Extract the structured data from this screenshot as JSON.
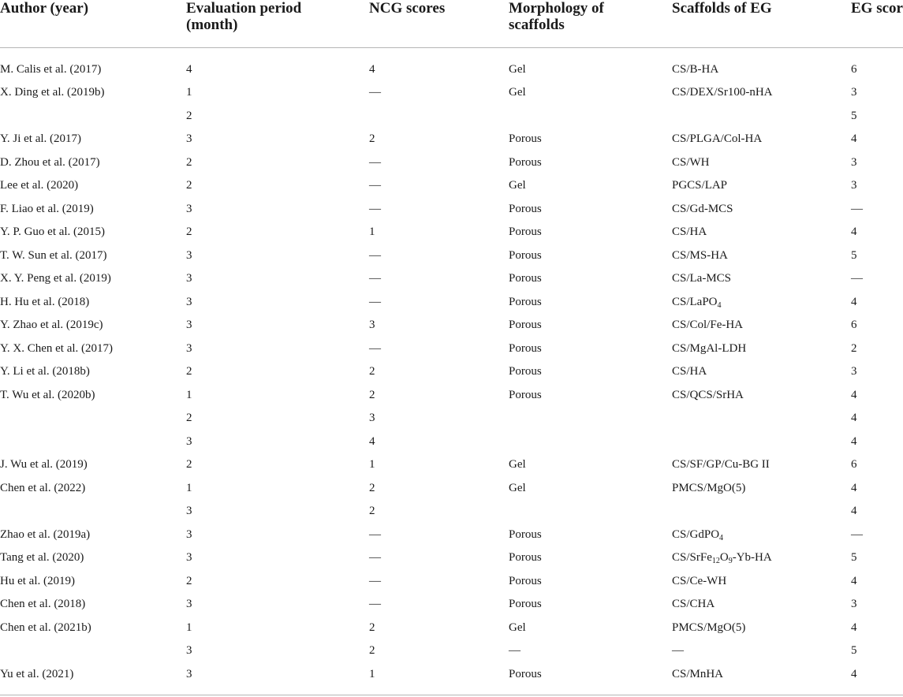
{
  "table": {
    "headers": [
      {
        "line1": "Author (year)",
        "line2": ""
      },
      {
        "line1": "Evaluation period",
        "line2": "(month)"
      },
      {
        "line1": "NCG scores",
        "line2": ""
      },
      {
        "line1": "Morphology of",
        "line2": "scaffolds"
      },
      {
        "line1": "Scaffolds of EG",
        "line2": ""
      },
      {
        "line1": "EG score",
        "line2": ""
      }
    ],
    "rows": [
      {
        "author": "M. Calis et al. (2017)",
        "period": "4",
        "ncg": "4",
        "morph": "Gel",
        "scaffold": "CS/B-HA",
        "eg": "6"
      },
      {
        "author": "X. Ding et al. (2019b)",
        "period": "1",
        "ncg": "—",
        "morph": "Gel",
        "scaffold": "CS/DEX/Sr100-nHA",
        "eg": "3"
      },
      {
        "author": "",
        "period": "2",
        "ncg": "",
        "morph": "",
        "scaffold": "",
        "eg": "5"
      },
      {
        "author": "Y. Ji et al. (2017)",
        "period": "3",
        "ncg": "2",
        "morph": "Porous",
        "scaffold": "CS/PLGA/Col-HA",
        "eg": "4"
      },
      {
        "author": "D. Zhou et al. (2017)",
        "period": "2",
        "ncg": "—",
        "morph": "Porous",
        "scaffold": "CS/WH",
        "eg": "3"
      },
      {
        "author": "Lee et al. (2020)",
        "period": "2",
        "ncg": "—",
        "morph": "Gel",
        "scaffold": "PGCS/LAP",
        "eg": "3"
      },
      {
        "author": "F. Liao et al. (2019)",
        "period": "3",
        "ncg": "—",
        "morph": "Porous",
        "scaffold": "CS/Gd-MCS",
        "eg": "—"
      },
      {
        "author": "Y. P. Guo et al. (2015)",
        "period": "2",
        "ncg": "1",
        "morph": "Porous",
        "scaffold": "CS/HA",
        "eg": "4"
      },
      {
        "author": "T. W. Sun et al. (2017)",
        "period": "3",
        "ncg": "—",
        "morph": "Porous",
        "scaffold": "CS/MS-HA",
        "eg": "5"
      },
      {
        "author": "X. Y. Peng et al. (2019)",
        "period": "3",
        "ncg": "—",
        "morph": "Porous",
        "scaffold": "CS/La-MCS",
        "eg": "—"
      },
      {
        "author": "H. Hu et al. (2018)",
        "period": "3",
        "ncg": "—",
        "morph": "Porous",
        "scaffold": "CS/LaPO",
        "scaffold_sub": "4",
        "scaffold_tail": "",
        "eg": "4"
      },
      {
        "author": "Y. Zhao et al. (2019c)",
        "period": "3",
        "ncg": "3",
        "morph": "Porous",
        "scaffold": "CS/Col/Fe-HA",
        "eg": "6"
      },
      {
        "author": "Y. X. Chen et al. (2017)",
        "period": "3",
        "ncg": "—",
        "morph": "Porous",
        "scaffold": "CS/MgAl-LDH",
        "eg": "2"
      },
      {
        "author": "Y. Li et al. (2018b)",
        "period": "2",
        "ncg": "2",
        "morph": "Porous",
        "scaffold": "CS/HA",
        "eg": "3"
      },
      {
        "author": "T. Wu et al. (2020b)",
        "period": "1",
        "ncg": "2",
        "morph": "Porous",
        "scaffold": "CS/QCS/SrHA",
        "eg": "4"
      },
      {
        "author": "",
        "period": "2",
        "ncg": "3",
        "morph": "",
        "scaffold": "",
        "eg": "4"
      },
      {
        "author": "",
        "period": "3",
        "ncg": "4",
        "morph": "",
        "scaffold": "",
        "eg": "4"
      },
      {
        "author": "J. Wu et al. (2019)",
        "period": "2",
        "ncg": "1",
        "morph": "Gel",
        "scaffold": "CS/SF/GP/Cu-BG II",
        "eg": "6"
      },
      {
        "author": "Chen et al. (2022)",
        "period": "1",
        "ncg": "2",
        "morph": "Gel",
        "scaffold": "PMCS/MgO(5)",
        "eg": "4"
      },
      {
        "author": "",
        "period": "3",
        "ncg": "2",
        "morph": "",
        "scaffold": "",
        "eg": "4"
      },
      {
        "author": "Zhao et al. (2019a)",
        "period": "3",
        "ncg": "—",
        "morph": "Porous",
        "scaffold": "CS/GdPO",
        "scaffold_sub": "4",
        "scaffold_tail": "",
        "eg": "—"
      },
      {
        "author": "Tang et al. (2020)",
        "period": "3",
        "ncg": "—",
        "morph": "Porous",
        "scaffold": "CS/SrFe",
        "scaffold_sub": "12",
        "scaffold_mid": "O",
        "scaffold_sub2": "9",
        "scaffold_tail": "-Yb-HA",
        "eg": "5"
      },
      {
        "author": "Hu et al. (2019)",
        "period": "2",
        "ncg": "—",
        "morph": "Porous",
        "scaffold": "CS/Ce-WH",
        "eg": "4"
      },
      {
        "author": "Chen et al. (2018)",
        "period": "3",
        "ncg": "—",
        "morph": "Porous",
        "scaffold": "CS/CHA",
        "eg": "3"
      },
      {
        "author": "Chen et al. (2021b)",
        "period": "1",
        "ncg": "2",
        "morph": "Gel",
        "scaffold": "PMCS/MgO(5)",
        "eg": "4"
      },
      {
        "author": "",
        "period": "3",
        "ncg": "2",
        "morph": "—",
        "scaffold": "—",
        "eg": "5"
      },
      {
        "author": "Yu et al. (2021)",
        "period": "3",
        "ncg": "1",
        "morph": "Porous",
        "scaffold": "CS/MnHA",
        "eg": "4"
      }
    ]
  }
}
